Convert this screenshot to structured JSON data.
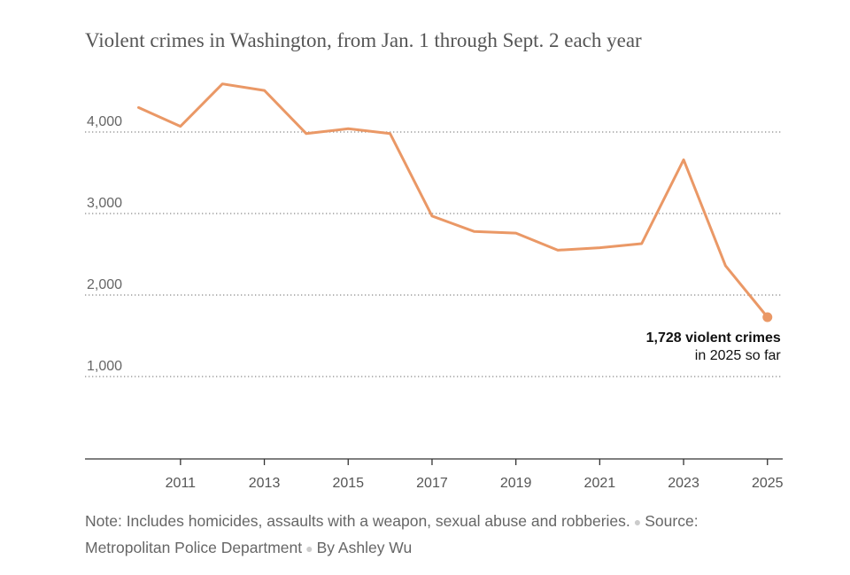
{
  "chart_data": {
    "type": "line",
    "title": "Violent crimes in Washington, from Jan. 1 through Sept. 2 each year",
    "xlabel": "",
    "ylabel": "",
    "x": [
      2010,
      2011,
      2012,
      2013,
      2014,
      2015,
      2016,
      2017,
      2018,
      2019,
      2020,
      2021,
      2022,
      2023,
      2024,
      2025
    ],
    "series": [
      {
        "values": [
          4300,
          4070,
          4590,
          4510,
          3980,
          4040,
          3980,
          2970,
          2780,
          2760,
          2550,
          2580,
          2630,
          3660,
          2360,
          1728
        ],
        "color": "#ea9866"
      }
    ],
    "xlim": [
      2009,
      2026
    ],
    "ylim": [
      0,
      5000
    ],
    "yticks": [
      1000,
      2000,
      3000,
      4000
    ],
    "ytick_labels": [
      "1,000",
      "2,000",
      "3,000",
      "4,000"
    ],
    "xticks": [
      2011,
      2013,
      2015,
      2017,
      2019,
      2021,
      2023,
      2025
    ],
    "xtick_labels": [
      "2011",
      "2013",
      "2015",
      "2017",
      "2019",
      "2021",
      "2023",
      "2025"
    ],
    "grid": "horizontal dotted",
    "annotation": {
      "x": 2025,
      "y": 1728,
      "line1": "1,728 violent crimes",
      "line2": "in 2025 so far"
    }
  },
  "footer": {
    "note": "Note: Includes homicides, assaults with a weapon, sexual abuse and robberies.",
    "source": "Source: Metropolitan Police Department",
    "byline": "By Ashley Wu"
  }
}
